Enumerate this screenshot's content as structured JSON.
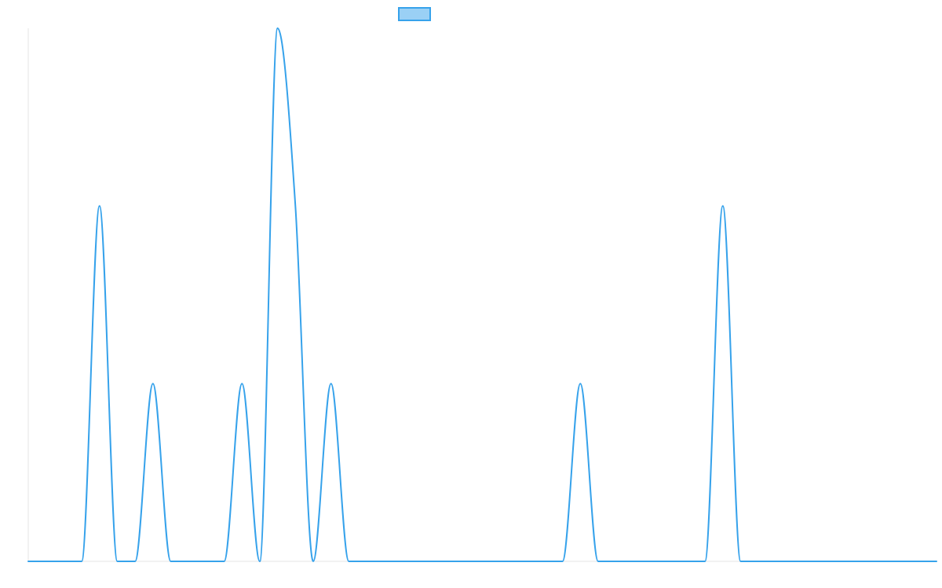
{
  "chart_data": {
    "type": "line",
    "title": "",
    "xlabel": "",
    "ylabel": "",
    "legend": {
      "placement": "top-center",
      "entries": [
        {
          "label": "",
          "fill": "#9ad0f5",
          "stroke": "#36a2eb"
        }
      ]
    },
    "grid": false,
    "xlim": [
      0,
      51
    ],
    "ylim": [
      0,
      3
    ],
    "x": [
      0,
      1,
      2,
      3,
      4,
      5,
      6,
      7,
      8,
      9,
      10,
      11,
      12,
      13,
      14,
      15,
      16,
      17,
      18,
      19,
      20,
      21,
      22,
      23,
      24,
      25,
      26,
      27,
      28,
      29,
      30,
      31,
      32,
      33,
      34,
      35,
      36,
      37,
      38,
      39,
      40,
      41,
      42,
      43,
      44,
      45,
      46,
      47,
      48,
      49,
      50,
      51
    ],
    "series": [
      {
        "color": "#36a2eb",
        "values": [
          0,
          0,
          0,
          0,
          2,
          0,
          0,
          1,
          0,
          0,
          0,
          0,
          1,
          0,
          3,
          2,
          0,
          1,
          0,
          0,
          0,
          0,
          0,
          0,
          0,
          0,
          0,
          0,
          0,
          0,
          0,
          1,
          0,
          0,
          0,
          0,
          0,
          0,
          0,
          2,
          0,
          0,
          0,
          0,
          0,
          0,
          0,
          0,
          0,
          0,
          0,
          0
        ]
      }
    ]
  }
}
